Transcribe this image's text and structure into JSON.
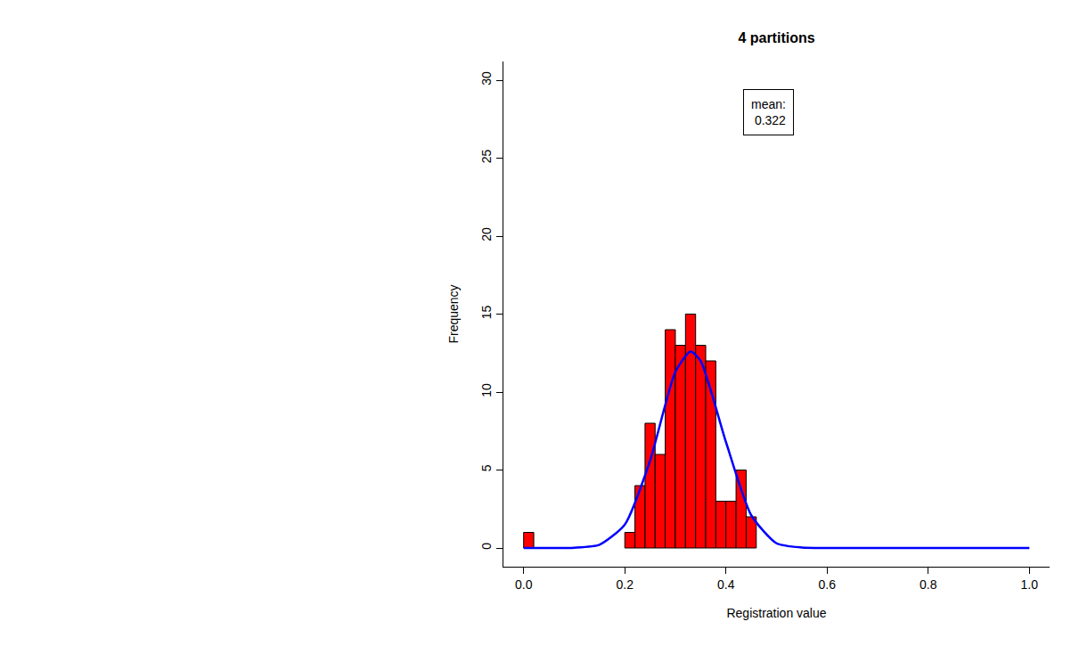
{
  "chart_data": {
    "type": "histogram",
    "title": "4 partitions",
    "x_label": "Registration value",
    "y_label": "Frequency",
    "bins": [
      0,
      0.02,
      0.04,
      0.06,
      0.08,
      0.1,
      0.12,
      0.14,
      0.16,
      0.18,
      0.2,
      0.22,
      0.24,
      0.26,
      0.28,
      0.3,
      0.32,
      0.34,
      0.36,
      0.38,
      0.4,
      0.42,
      0.44,
      0.46
    ],
    "counts": [
      1,
      0,
      0,
      0,
      0,
      0,
      0,
      0,
      0,
      0,
      1,
      4,
      8,
      6,
      14,
      13,
      15,
      13,
      12,
      3,
      3,
      5,
      2
    ],
    "color": "#ff0000",
    "curve": {
      "type": "line",
      "color": "#0000ff",
      "x": [
        0,
        0.05,
        0.1,
        0.15,
        0.2,
        0.25,
        0.3,
        0.33,
        0.35,
        0.4,
        0.45,
        0.5,
        0.55,
        0.6,
        0.7,
        0.8,
        0.9,
        1.0
      ],
      "values": [
        0,
        0,
        0.02,
        0.21,
        1.5,
        5.6,
        11.3,
        12.6,
        12.0,
        6.8,
        2.1,
        0.3,
        0.03,
        0,
        0,
        0,
        0,
        0
      ]
    },
    "mean_label": "mean:",
    "mean": 0.322,
    "xlim": [
      -0.04,
      1.04
    ],
    "xticks": [
      {
        "value": 0,
        "label": "0.0"
      },
      0.2,
      0.4,
      0.6,
      0.8,
      {
        "value": 1,
        "label": "1.0"
      }
    ],
    "ylim": [
      -1.2,
      31.2
    ],
    "yticks": [
      0,
      5,
      10,
      15,
      20,
      25,
      30
    ],
    "grid": false
  }
}
